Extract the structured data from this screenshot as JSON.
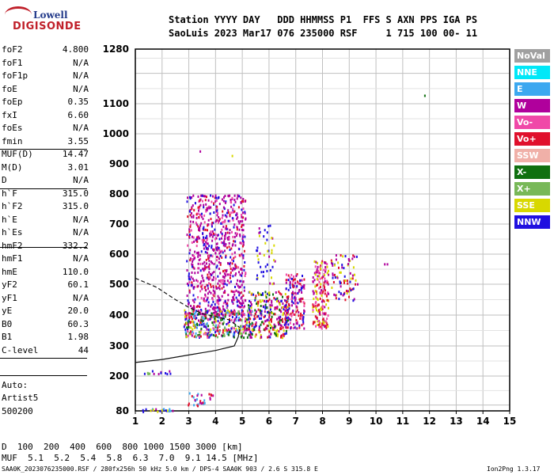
{
  "logo": {
    "line1": "Lowell",
    "line2": "DIGISONDE"
  },
  "header": {
    "line1": "Station YYYY DAY   DDD HHMMSS P1  FFS S AXN PPS IGA PS",
    "line2": "SaoLuis 2023 Mar17 076 235000 RSF     1 715 100 00- 11"
  },
  "params": [
    {
      "name": "foF2",
      "value": "4.800"
    },
    {
      "name": "foF1",
      "value": "N/A"
    },
    {
      "name": "foF1p",
      "value": "N/A"
    },
    {
      "name": "foE",
      "value": "N/A"
    },
    {
      "name": "foEp",
      "value": "0.35"
    },
    {
      "name": "fxI",
      "value": "6.60"
    },
    {
      "name": "foEs",
      "value": "N/A"
    },
    {
      "name": "fmin",
      "value": "3.55"
    },
    {
      "name": "MUF(D)",
      "value": "14.47"
    },
    {
      "name": "M(D)",
      "value": "3.01"
    },
    {
      "name": "D",
      "value": "N/A"
    },
    {
      "name": "h`F",
      "value": "315.0"
    },
    {
      "name": "h`F2",
      "value": "315.0"
    },
    {
      "name": "h`E",
      "value": "N/A"
    },
    {
      "name": "h`Es",
      "value": "N/A"
    },
    {
      "name": "hmF2",
      "value": "332.2"
    },
    {
      "name": "hmF1",
      "value": "N/A"
    },
    {
      "name": "hmE",
      "value": "110.0"
    },
    {
      "name": "yF2",
      "value": "60.1"
    },
    {
      "name": "yF1",
      "value": "N/A"
    },
    {
      "name": "yE",
      "value": "20.0"
    },
    {
      "name": "B0",
      "value": "60.3"
    },
    {
      "name": "B1",
      "value": "1.98"
    },
    {
      "name": "C-level",
      "value": "44"
    }
  ],
  "auto": {
    "label": "Auto:",
    "artist": "Artist5",
    "version": "500200"
  },
  "legend": [
    {
      "label": "NoVal",
      "color": "#a0a0a0"
    },
    {
      "label": "NNE",
      "color": "#00e8f8"
    },
    {
      "label": "E",
      "color": "#3ca8f0"
    },
    {
      "label": "W",
      "color": "#b0009c"
    },
    {
      "label": "Vo-",
      "color": "#f048a8"
    },
    {
      "label": "Vo+",
      "color": "#e0102c"
    },
    {
      "label": "SSW",
      "color": "#f0b0a8"
    },
    {
      "label": "X-",
      "color": "#107010"
    },
    {
      "label": "X+",
      "color": "#78b858"
    },
    {
      "label": "SSE",
      "color": "#d8d800"
    },
    {
      "label": "NNW",
      "color": "#2010e0"
    }
  ],
  "bottom": {
    "d_label": "D",
    "d_values": "  100  200  400  600  800 1000 1500 3000 [km]",
    "muf_label": "MUF",
    "muf_values": "  5.1  5.2  5.4  5.8  6.3  7.0  9.1 14.5 [MHz]",
    "footer_left": "SAA0K_2023076235000.RSF / 280fx256h 50 kHz 5.0 km / DPS-4 SAA0K 903 / 2.6 S 315.8 E",
    "footer_right": "Ion2Png 1.3.17"
  },
  "chart_data": {
    "type": "scatter",
    "x_range": [
      1,
      15
    ],
    "y_range": [
      80,
      1280
    ],
    "x_ticks": [
      1,
      2,
      3,
      4,
      5,
      6,
      7,
      8,
      9,
      10,
      11,
      12,
      13,
      14,
      15
    ],
    "y_ticks": [
      80,
      200,
      300,
      400,
      500,
      600,
      700,
      800,
      900,
      1000,
      1100,
      1280
    ],
    "y_scale": "nonlinear",
    "grid": true,
    "traces": [
      {
        "name": "profile",
        "style": "solid",
        "points": [
          [
            1.0,
            245
          ],
          [
            2.0,
            255
          ],
          [
            3.0,
            270
          ],
          [
            4.0,
            285
          ],
          [
            4.7,
            300
          ],
          [
            4.85,
            330
          ],
          [
            4.9,
            355
          ]
        ]
      },
      {
        "name": "profile-extension",
        "style": "dashed",
        "points": [
          [
            1.0,
            520
          ],
          [
            1.8,
            490
          ],
          [
            2.5,
            450
          ],
          [
            3.0,
            425
          ],
          [
            3.5,
            405
          ],
          [
            4.0,
            395
          ],
          [
            4.5,
            385
          ],
          [
            4.9,
            360
          ]
        ]
      }
    ],
    "clusters": [
      {
        "xmin": 2.9,
        "xmax": 5.1,
        "ymin": 400,
        "ymax": 800,
        "density": 0.42,
        "colors": [
          "#b0009c",
          "#b0009c",
          "#b0009c",
          "#f048a8",
          "#e0102c",
          "#2010e0"
        ]
      },
      {
        "xmin": 2.8,
        "xmax": 5.4,
        "ymin": 330,
        "ymax": 420,
        "density": 0.75,
        "colors": [
          "#2010e0",
          "#b0009c",
          "#e0102c",
          "#107010",
          "#d8d800",
          "#3ca8f0",
          "#78b858",
          "#f048a8"
        ]
      },
      {
        "xmin": 5.2,
        "xmax": 6.7,
        "ymin": 330,
        "ymax": 480,
        "density": 0.55,
        "colors": [
          "#2010e0",
          "#e0102c",
          "#b0009c",
          "#107010",
          "#d8d800"
        ]
      },
      {
        "xmin": 5.5,
        "xmax": 6.2,
        "ymin": 500,
        "ymax": 700,
        "density": 0.15,
        "colors": [
          "#b0009c",
          "#2010e0",
          "#d8d800"
        ]
      },
      {
        "xmin": 6.6,
        "xmax": 7.3,
        "ymin": 360,
        "ymax": 540,
        "density": 0.55,
        "colors": [
          "#e0102c",
          "#b0009c",
          "#f048a8",
          "#2010e0"
        ]
      },
      {
        "xmin": 7.6,
        "xmax": 8.2,
        "ymin": 360,
        "ymax": 580,
        "density": 0.6,
        "colors": [
          "#e0102c",
          "#f048a8",
          "#b0009c",
          "#d8d800"
        ]
      },
      {
        "xmin": 8.3,
        "xmax": 9.3,
        "ymin": 450,
        "ymax": 600,
        "density": 0.25,
        "colors": [
          "#b0009c",
          "#d8d800",
          "#e0102c",
          "#2010e0"
        ]
      },
      {
        "xmin": 1.3,
        "xmax": 2.3,
        "ymin": 210,
        "ymax": 220,
        "density": 0.7,
        "colors": [
          "#b0009c",
          "#2010e0",
          "#78b858"
        ]
      },
      {
        "xmin": 1.2,
        "xmax": 2.4,
        "ymin": 80,
        "ymax": 92,
        "density": 0.7,
        "colors": [
          "#d8d800",
          "#2010e0",
          "#3ca8f0",
          "#b0009c"
        ]
      },
      {
        "xmin": 2.9,
        "xmax": 3.9,
        "ymin": 100,
        "ymax": 145,
        "density": 0.3,
        "colors": [
          "#b0009c",
          "#e0102c",
          "#3ca8f0"
        ]
      }
    ],
    "isolated_points": [
      {
        "x": 11.8,
        "y": 1130,
        "color": "#107010"
      },
      {
        "x": 10.3,
        "y": 570,
        "color": "#b0009c"
      },
      {
        "x": 10.4,
        "y": 570,
        "color": "#b0009c"
      },
      {
        "x": 3.4,
        "y": 945,
        "color": "#b0009c"
      },
      {
        "x": 4.6,
        "y": 930,
        "color": "#d8d800"
      }
    ]
  }
}
